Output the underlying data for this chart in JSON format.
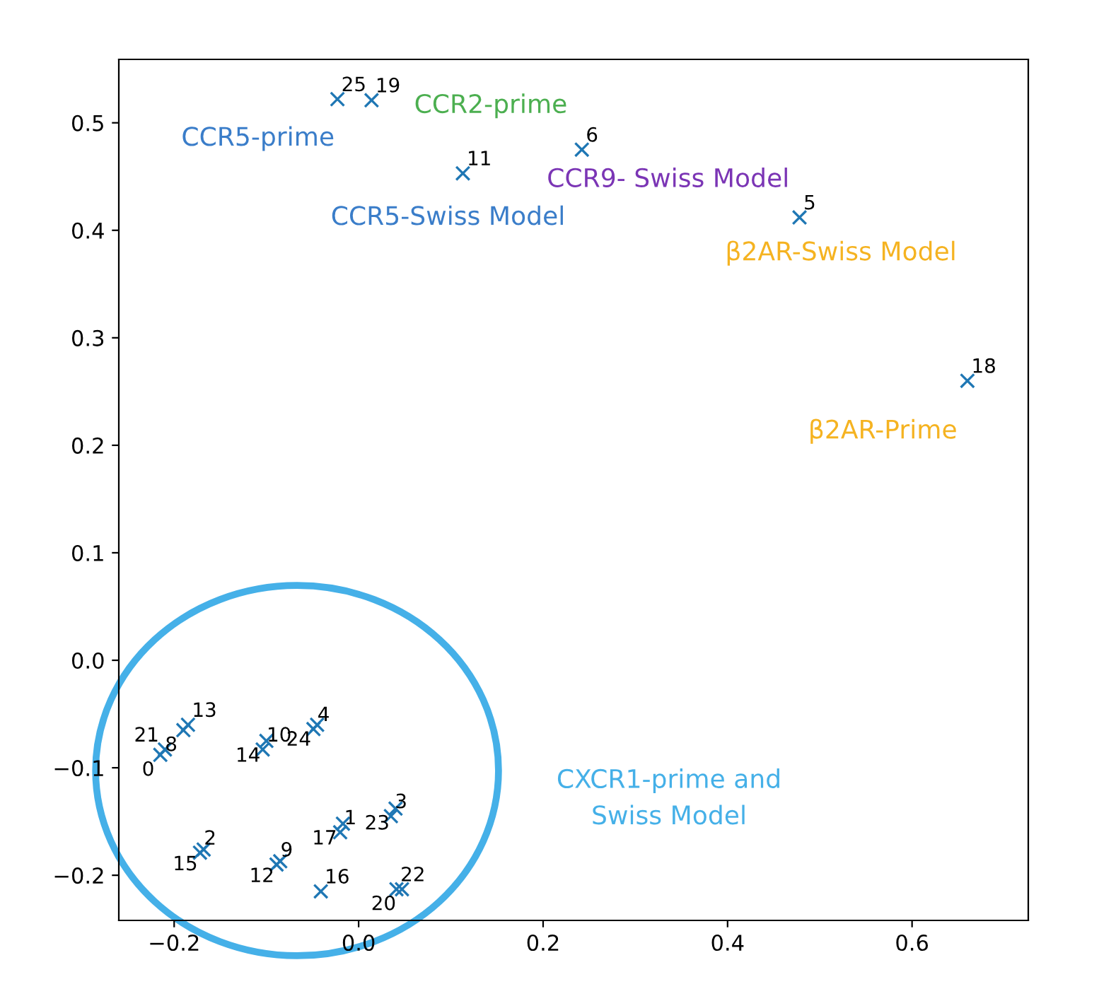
{
  "chart_data": {
    "type": "scatter",
    "marker": "cross",
    "grid": false,
    "xlim": [
      -0.26,
      0.726
    ],
    "ylim": [
      -0.242,
      0.559
    ],
    "xticks": [
      {
        "value": -0.2,
        "label": "−0.2"
      },
      {
        "value": 0.0,
        "label": "0.0"
      },
      {
        "value": 0.2,
        "label": "0.2"
      },
      {
        "value": 0.4,
        "label": "0.4"
      },
      {
        "value": 0.6,
        "label": "0.6"
      }
    ],
    "yticks": [
      {
        "value": -0.2,
        "label": "−0.2"
      },
      {
        "value": -0.1,
        "label": "−0.1"
      },
      {
        "value": 0.0,
        "label": "0.0"
      },
      {
        "value": 0.1,
        "label": "0.1"
      },
      {
        "value": 0.2,
        "label": "0.2"
      },
      {
        "value": 0.3,
        "label": "0.3"
      },
      {
        "value": 0.4,
        "label": "0.4"
      },
      {
        "value": 0.5,
        "label": "0.5"
      }
    ],
    "series": [
      {
        "color": "#1f77b4",
        "x": [
          -0.023,
          0.014,
          0.113,
          0.242,
          0.478,
          0.66,
          -0.19,
          -0.185,
          -0.215,
          -0.21,
          -0.104,
          -0.1,
          -0.049,
          -0.045,
          0.035,
          0.04,
          -0.02,
          -0.017,
          -0.172,
          -0.168,
          -0.089,
          -0.085,
          -0.041,
          0.041,
          0.047
        ],
        "values": [
          0.522,
          0.521,
          0.453,
          0.475,
          0.412,
          0.26,
          -0.065,
          -0.06,
          -0.088,
          -0.083,
          -0.083,
          -0.075,
          -0.064,
          -0.06,
          -0.145,
          -0.138,
          -0.16,
          -0.152,
          -0.179,
          -0.176,
          -0.19,
          -0.187,
          -0.215,
          -0.213,
          -0.213
        ]
      }
    ],
    "annotations": [
      {
        "text": "25",
        "x": -0.023,
        "y": 0.522
      },
      {
        "text": "19",
        "x": 0.014,
        "y": 0.521
      },
      {
        "text": "11",
        "x": 0.113,
        "y": 0.453
      },
      {
        "text": "6",
        "x": 0.242,
        "y": 0.475
      },
      {
        "text": "5",
        "x": 0.478,
        "y": 0.412
      },
      {
        "text": "18",
        "x": 0.66,
        "y": 0.26
      },
      {
        "text": "13",
        "x": -0.185,
        "y": -0.06
      },
      {
        "text": "8",
        "x": -0.19,
        "y": -0.065
      },
      {
        "text": "21",
        "x": -0.21,
        "y": -0.083
      },
      {
        "text": "0",
        "x": -0.215,
        "y": -0.088
      },
      {
        "text": "10",
        "x": -0.104,
        "y": -0.083
      },
      {
        "text": "14",
        "x": -0.1,
        "y": -0.075
      },
      {
        "text": "4",
        "x": -0.049,
        "y": -0.064
      },
      {
        "text": "24",
        "x": -0.045,
        "y": -0.06
      },
      {
        "text": "3",
        "x": 0.035,
        "y": -0.145
      },
      {
        "text": "23",
        "x": 0.04,
        "y": -0.138
      },
      {
        "text": "1",
        "x": -0.02,
        "y": -0.16
      },
      {
        "text": "17",
        "x": -0.017,
        "y": -0.152
      },
      {
        "text": "2",
        "x": -0.172,
        "y": -0.179
      },
      {
        "text": "15",
        "x": -0.168,
        "y": -0.176
      },
      {
        "text": "9",
        "x": -0.089,
        "y": -0.19
      },
      {
        "text": "12",
        "x": -0.085,
        "y": -0.187
      },
      {
        "text": "16",
        "x": -0.041,
        "y": -0.215
      },
      {
        "text": "22",
        "x": 0.041,
        "y": -0.213
      },
      {
        "text": "20",
        "x": 0.047,
        "y": -0.213
      },
      "CCR5-prime",
      "CCR2-prime",
      "CCR5-Swiss Model",
      "CCR9- Swiss Model",
      "β2AR-Swiss Model",
      "β2AR-Prime",
      "CXCR1-prime and\nSwiss Model"
    ]
  }
}
